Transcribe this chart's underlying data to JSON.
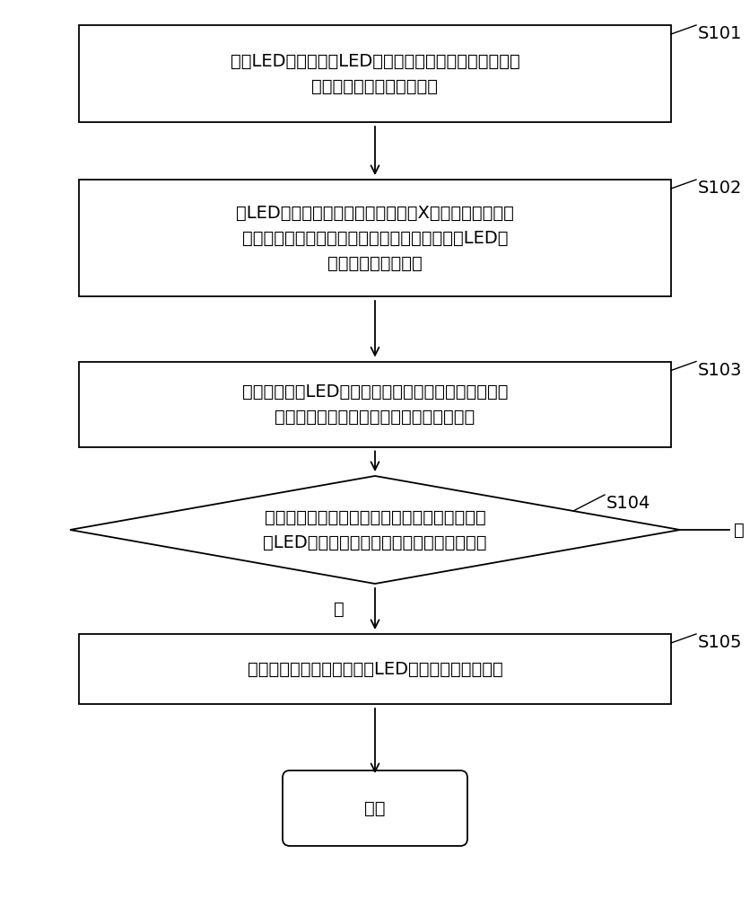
{
  "bg_color": "#ffffff",
  "border_color": "#000000",
  "text_color": "#000000",
  "arrow_color": "#000000",
  "font_size": 14,
  "label_font_size": 14,
  "s101_text": "获取LED光源器件上LED光源变色区域中变色斑点中的斑\n点元素及变色失效结果成分",
  "s102_text": "对LED光源器件上的灯具零部件采用X射线能谱仪对零部\n件中的元素进行分析，基于斑点元素确定可导致LED光\n源变色的灯具零部件",
  "s103_text": "对确定可导致LED光源变色的灯具零部件与含银验证材\n料一体置于密封腔体内进行零部件失效反应",
  "s104_text": "判断每一零部件所对应的失效反应中的结果是否\n与LED光源的色变区域的变色失效结果相一致",
  "s105_text": "确定所述灯具零部件为导致LED光源变色失效的源头",
  "end_text": "结束",
  "yes_label": "是",
  "no_label": "否",
  "s101_label": "S101",
  "s102_label": "S102",
  "s103_label": "S103",
  "s104_label": "S104",
  "s105_label": "S105"
}
